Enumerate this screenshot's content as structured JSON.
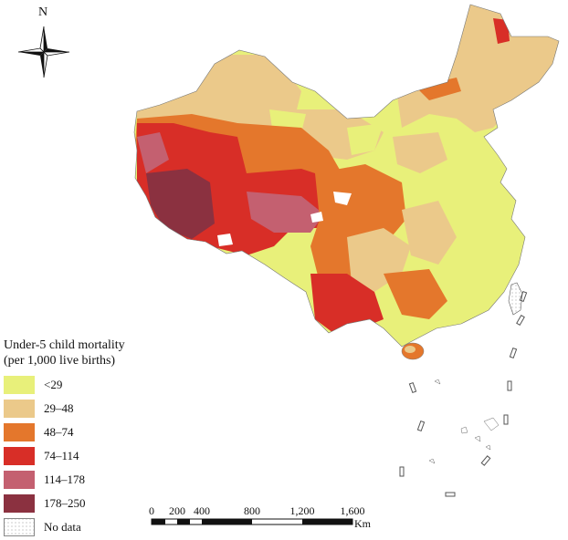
{
  "compass": {
    "label": "N",
    "icon": "north-arrow-compass-icon"
  },
  "legend": {
    "title_line1": "Under-5 child mortality",
    "title_line2": "(per 1,000 live births)",
    "classes": [
      {
        "label": "<29",
        "color": "#e8f07a"
      },
      {
        "label": "29–48",
        "color": "#ebc98a"
      },
      {
        "label": "48–74",
        "color": "#e4772c"
      },
      {
        "label": "74–114",
        "color": "#d82e27"
      },
      {
        "label": "114–178",
        "color": "#c46070"
      },
      {
        "label": "178–250",
        "color": "#8b3140"
      }
    ],
    "no_data": {
      "label": "No data",
      "color": "#ffffff"
    }
  },
  "scale_bar": {
    "ticks": [
      "0",
      "200",
      "400",
      "800",
      "1,200",
      "1,600"
    ],
    "unit": "Km"
  }
}
